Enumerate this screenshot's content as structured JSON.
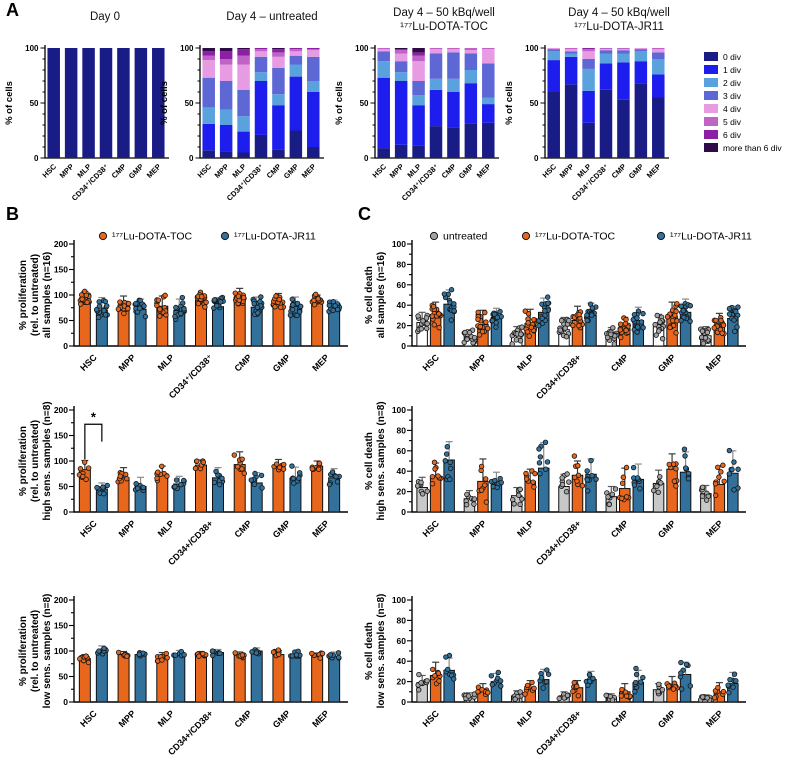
{
  "panels": {
    "a": "A",
    "b": "B",
    "c": "C"
  },
  "chart_data": {
    "panelA": {
      "type": "bar",
      "subtype": "stacked-100pct",
      "ylabel": "% of cells",
      "ylim": [
        0,
        100
      ],
      "yticks": [
        0,
        50,
        100
      ],
      "categories": [
        "HSC",
        "MPP",
        "MLP",
        "CD34⁺/CD38⁺",
        "CMP",
        "GMP",
        "MEP"
      ],
      "legend": [
        {
          "label": "0 div",
          "color": "#1A1C86"
        },
        {
          "label": "1 div",
          "color": "#1D1DED"
        },
        {
          "label": "2 div",
          "color": "#59A2DE"
        },
        {
          "label": "3 div",
          "color": "#5E68D4"
        },
        {
          "label": "4 div",
          "color": "#E79BE2"
        },
        {
          "label": "5 div",
          "color": "#BF63C6"
        },
        {
          "label": "6 div",
          "color": "#8C1FA6"
        },
        {
          "label": "more than 6 div",
          "color": "#2E0A46"
        }
      ],
      "titles": [
        [
          "Day 0"
        ],
        [
          "Day 4 – untreated"
        ],
        [
          "Day 4 – 50 kBq/well",
          "¹⁷⁷Lu-DOTA-TOC"
        ],
        [
          "Day 4 – 50 kBq/well",
          "¹⁷⁷Lu-DOTA-JR11"
        ]
      ],
      "charts": [
        {
          "stacks": [
            [
              100,
              0,
              0,
              0,
              0,
              0,
              0,
              0
            ],
            [
              100,
              0,
              0,
              0,
              0,
              0,
              0,
              0
            ],
            [
              100,
              0,
              0,
              0,
              0,
              0,
              0,
              0
            ],
            [
              100,
              0,
              0,
              0,
              0,
              0,
              0,
              0
            ],
            [
              100,
              0,
              0,
              0,
              0,
              0,
              0,
              0
            ],
            [
              100,
              0,
              0,
              0,
              0,
              0,
              0,
              0
            ],
            [
              100,
              0,
              0,
              0,
              0,
              0,
              0,
              0
            ]
          ]
        },
        {
          "stacks": [
            [
              7,
              24,
              15,
              27,
              16,
              4,
              4,
              3
            ],
            [
              6,
              24,
              14,
              26,
              15,
              5,
              7,
              3
            ],
            [
              5,
              19,
              14,
              24,
              23,
              8,
              6,
              1
            ],
            [
              21,
              49,
              8,
              14,
              5,
              2,
              1,
              0
            ],
            [
              8,
              40,
              10,
              24,
              10,
              4,
              3,
              1
            ],
            [
              25,
              49,
              11,
              8,
              4,
              2,
              1,
              0
            ],
            [
              10,
              50,
              10,
              22,
              6,
              1,
              1,
              0
            ]
          ]
        },
        {
          "stacks": [
            [
              9,
              64,
              15,
              9,
              2,
              1,
              0,
              0
            ],
            [
              12,
              58,
              8,
              10,
              7,
              3,
              1,
              1
            ],
            [
              11,
              37,
              9,
              13,
              18,
              5,
              3,
              4
            ],
            [
              29,
              33,
              10,
              23,
              4,
              1,
              0,
              0
            ],
            [
              28,
              32,
              12,
              24,
              3,
              1,
              0,
              0
            ],
            [
              31,
              37,
              12,
              15,
              3,
              2,
              0,
              0
            ],
            [
              32,
              17,
              6,
              31,
              13,
              1,
              0,
              0
            ]
          ]
        },
        {
          "stacks": [
            [
              60,
              29,
              8,
              2,
              1,
              0,
              0,
              0
            ],
            [
              67,
              25,
              3,
              2,
              2,
              1,
              0,
              0
            ],
            [
              32,
              29,
              20,
              9,
              7,
              2,
              1,
              0
            ],
            [
              62,
              24,
              9,
              3,
              1,
              1,
              0,
              0
            ],
            [
              53,
              34,
              8,
              3,
              1,
              1,
              0,
              0
            ],
            [
              68,
              20,
              9,
              2,
              1,
              0,
              0,
              0
            ],
            [
              55,
              21,
              14,
              6,
              3,
              1,
              0,
              0
            ]
          ]
        }
      ]
    },
    "panelB": {
      "type": "bar",
      "subtype": "grouped-bars-with-scatter",
      "legend": [
        {
          "label": "¹⁷⁷Lu-DOTA-TOC",
          "color": "#E8671C"
        },
        {
          "label": "¹⁷⁷Lu-DOTA-JR11",
          "color": "#31719C"
        }
      ],
      "charts": [
        {
          "ylabel_lines": [
            "% proliferation",
            "(rel. to untreated)",
            "all samples (n=16)"
          ],
          "n": 16,
          "ylim": [
            0,
            200
          ],
          "ystep": 50,
          "categories": [
            "HSC",
            "MPP",
            "MLP",
            "CD34⁺/CD38⁺",
            "CMP",
            "GMP",
            "MEP"
          ],
          "series": [
            {
              "name": "177Lu-DOTA-TOC",
              "fill": "#E8671C",
              "dot": "#E8671C",
              "ec": "#3A3A3A",
              "means": [
                92,
                80,
                78,
                90,
                95,
                88,
                90
              ],
              "errs": [
                15,
                18,
                20,
                12,
                18,
                15,
                10
              ]
            },
            {
              "name": "177Lu-DOTA-JR11",
              "fill": "#31719C",
              "dot": "#31719C",
              "ec": "#8A8A8A",
              "means": [
                70,
                72,
                70,
                77,
                76,
                78,
                78
              ],
              "errs": [
                25,
                20,
                22,
                18,
                20,
                18,
                12
              ]
            }
          ]
        },
        {
          "ylabel_lines": [
            "% proliferation",
            "(rel. to untreated)",
            "high sens. samples  (n=8)"
          ],
          "n": 8,
          "ylim": [
            0,
            200
          ],
          "ystep": 50,
          "categories": [
            "HSC",
            "MPP",
            "MLP",
            "CD34+/CD38+",
            "CMP",
            "GMP",
            "MEP"
          ],
          "series": [
            {
              "name": "177Lu-DOTA-TOC",
              "fill": "#E8671C",
              "dot": "#E8671C",
              "ec": "#3A3A3A",
              "means": [
                83,
                67,
                75,
                92,
                93,
                88,
                90
              ],
              "errs": [
                18,
                20,
                15,
                10,
                25,
                15,
                10
              ]
            },
            {
              "name": "177Lu-DOTA-JR11",
              "fill": "#31719C",
              "dot": "#31719C",
              "ec": "#8A8A8A",
              "means": [
                45,
                50,
                55,
                67,
                57,
                66,
                67
              ],
              "errs": [
                12,
                18,
                15,
                20,
                20,
                22,
                18
              ]
            }
          ],
          "sig": {
            "category": "HSC",
            "text": "*",
            "top": 172,
            "left_from": 104,
            "right_to": 138
          }
        },
        {
          "ylabel_lines": [
            "% proliferation",
            "(rel. to untreated)",
            "low sens. samples  (n=8)"
          ],
          "n": 8,
          "ylim": [
            0,
            200
          ],
          "ystep": 50,
          "categories": [
            "HSC",
            "MPP",
            "MLP",
            "CD34+/CD38+",
            "CMP",
            "GMP",
            "MEP"
          ],
          "series": [
            {
              "name": "177Lu-DOTA-TOC",
              "fill": "#E8671C",
              "dot": "#E8671C",
              "ec": "#3A3A3A",
              "means": [
                85,
                93,
                85,
                93,
                92,
                93,
                90
              ],
              "errs": [
                8,
                6,
                12,
                6,
                6,
                8,
                6
              ]
            },
            {
              "name": "177Lu-DOTA-JR11",
              "fill": "#31719C",
              "dot": "#31719C",
              "ec": "#8A8A8A",
              "means": [
                98,
                93,
                93,
                97,
                100,
                92,
                90
              ],
              "errs": [
                12,
                6,
                8,
                6,
                6,
                8,
                8
              ]
            }
          ]
        }
      ]
    },
    "panelC": {
      "type": "bar",
      "subtype": "grouped-bars-with-scatter",
      "legend": [
        {
          "label": "untreated",
          "color": "#A3A3A3"
        },
        {
          "label": "¹⁷⁷Lu-DOTA-TOC",
          "color": "#E8671C"
        },
        {
          "label": "¹⁷⁷Lu-DOTA-JR11",
          "color": "#31719C"
        }
      ],
      "charts": [
        {
          "ylabel_lines": [
            "% cell death",
            "all samples  (n=16)"
          ],
          "n": 16,
          "ylim": [
            0,
            100
          ],
          "ystep": 20,
          "categories": [
            "HSC",
            "MPP",
            "MLP",
            "CD34+/CD38+",
            "CMP",
            "GMP",
            "MEP"
          ],
          "series": [
            {
              "name": "untreated",
              "fill": "#FFFFFF",
              "dot": "#A3A3A3",
              "ec": "#5A5A5A",
              "means": [
                23,
                9,
                11,
                16,
                9,
                19,
                10
              ],
              "errs": [
                10,
                7,
                8,
                12,
                9,
                12,
                9
              ]
            },
            {
              "name": "177Lu-DOTA-TOC",
              "fill": "#E8671C",
              "dot": "#E8671C",
              "ec": "#3A3A3A",
              "means": [
                31,
                21,
                22,
                25,
                17,
                29,
                19
              ],
              "errs": [
                12,
                14,
                14,
                14,
                11,
                14,
                13
              ]
            },
            {
              "name": "177Lu-DOTA-JR11",
              "fill": "#31719C",
              "dot": "#31719C",
              "ec": "#8A8A8A",
              "means": [
                41,
                28,
                33,
                30,
                25,
                33,
                27
              ],
              "errs": [
                14,
                9,
                14,
                12,
                13,
                13,
                12
              ]
            }
          ]
        },
        {
          "ylabel_lines": [
            "% cell death",
            "high sens. samples  (n=8)"
          ],
          "n": 8,
          "ylim": [
            0,
            100
          ],
          "ystep": 20,
          "categories": [
            "HSC",
            "MPP",
            "MLP",
            "CD34+/CD38+",
            "CMP",
            "GMP",
            "MEP"
          ],
          "series": [
            {
              "name": "untreated",
              "fill": "#C8C8C8",
              "dot": "#A3A3A3",
              "ec": "#5A5A5A",
              "means": [
                24,
                13,
                16,
                25,
                15,
                28,
                18
              ],
              "errs": [
                10,
                8,
                8,
                12,
                10,
                13,
                8
              ]
            },
            {
              "name": "177Lu-DOTA-TOC",
              "fill": "#E8671C",
              "dot": "#E8671C",
              "ec": "#3A3A3A",
              "means": [
                35,
                30,
                30,
                36,
                23,
                42,
                27
              ],
              "errs": [
                13,
                22,
                12,
                14,
                20,
                15,
                18
              ]
            },
            {
              "name": "177Lu-DOTA-JR11",
              "fill": "#31719C",
              "dot": "#31719C",
              "ec": "#8A8A8A",
              "means": [
                51,
                29,
                43,
                37,
                32,
                39,
                38
              ],
              "errs": [
                18,
                10,
                25,
                15,
                15,
                20,
                22
              ]
            }
          ]
        },
        {
          "ylabel_lines": [
            "% cell death",
            "low sens. samples  (n=8)"
          ],
          "n": 8,
          "ylim": [
            0,
            100
          ],
          "ystep": 20,
          "categories": [
            "HSC",
            "MPP",
            "MLP",
            "CD34+/CD38+",
            "CMP",
            "GMP",
            "MEP"
          ],
          "series": [
            {
              "name": "untreated",
              "fill": "#C8C8C8",
              "dot": "#A3A3A3",
              "ec": "#5A5A5A",
              "means": [
                19,
                5,
                6,
                6,
                4,
                12,
                3
              ],
              "errs": [
                7,
                4,
                5,
                4,
                4,
                6,
                4
              ]
            },
            {
              "name": "177Lu-DOTA-TOC",
              "fill": "#E8671C",
              "dot": "#E8671C",
              "ec": "#3A3A3A",
              "means": [
                26,
                11,
                13,
                14,
                10,
                17,
                10
              ],
              "errs": [
                13,
                7,
                8,
                7,
                8,
                8,
                9
              ]
            },
            {
              "name": "177Lu-DOTA-JR11",
              "fill": "#31719C",
              "dot": "#31719C",
              "ec": "#8A8A8A",
              "means": [
                31,
                20,
                22,
                22,
                19,
                27,
                18
              ],
              "errs": [
                12,
                8,
                10,
                8,
                12,
                12,
                11
              ]
            }
          ]
        }
      ]
    }
  }
}
